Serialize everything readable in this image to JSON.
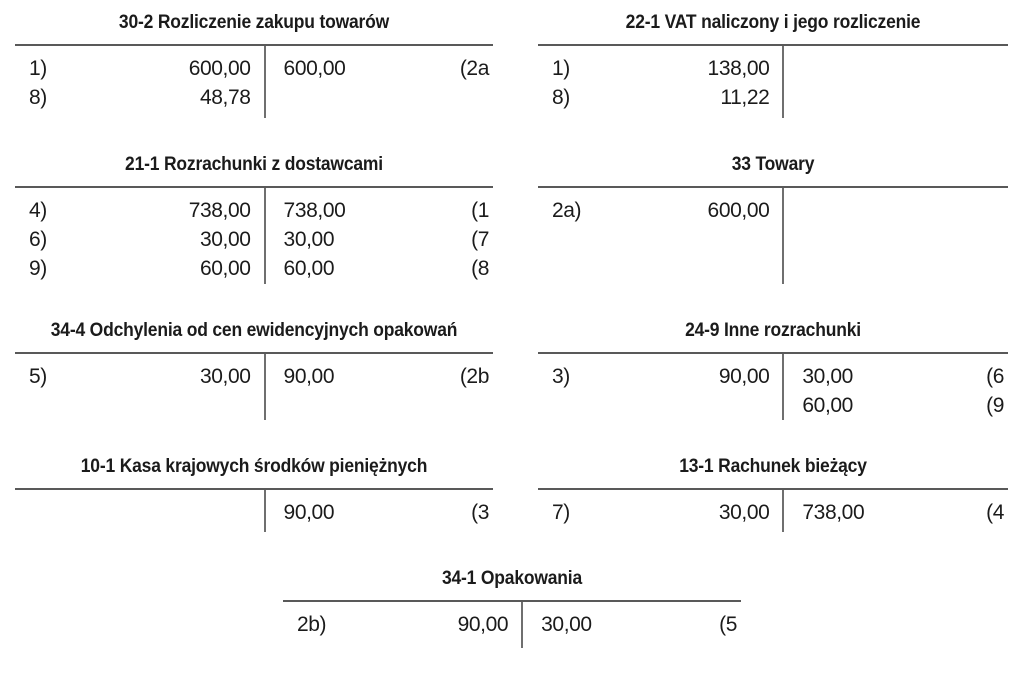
{
  "figure": {
    "kind": "t-accounts",
    "language": "pl"
  },
  "colors": {
    "ink": "#1b1b1b",
    "rule": "#595959",
    "rule-light": "#6f6f6f",
    "background": "#ffffff"
  },
  "accounts": [
    {
      "title": "30-2 Rozliczenie zakupu towarów",
      "debit": [
        {
          "ref": "1)",
          "amount": "600,00"
        },
        {
          "ref": "8)",
          "amount": "48,78"
        }
      ],
      "credit": [
        {
          "amount": "600,00",
          "ref": "(2a"
        }
      ]
    },
    {
      "title": "22-1 VAT naliczony i jego rozliczenie",
      "debit": [
        {
          "ref": "1)",
          "amount": "138,00"
        },
        {
          "ref": "8)",
          "amount": "11,22"
        }
      ],
      "credit": []
    },
    {
      "title": "21-1 Rozrachunki z dostawcami",
      "debit": [
        {
          "ref": "4)",
          "amount": "738,00"
        },
        {
          "ref": "6)",
          "amount": "30,00"
        },
        {
          "ref": "9)",
          "amount": "60,00"
        }
      ],
      "credit": [
        {
          "amount": "738,00",
          "ref": "(1"
        },
        {
          "amount": "30,00",
          "ref": "(7"
        },
        {
          "amount": "60,00",
          "ref": "(8"
        }
      ]
    },
    {
      "title": "33 Towary",
      "debit": [
        {
          "ref": "2a)",
          "amount": "600,00"
        }
      ],
      "credit": []
    },
    {
      "title": "34-4 Odchylenia od cen ewidencyjnych opakowań",
      "debit": [
        {
          "ref": "5)",
          "amount": "30,00"
        }
      ],
      "credit": [
        {
          "amount": "90,00",
          "ref": "(2b"
        }
      ]
    },
    {
      "title": "24-9 Inne rozrachunki",
      "debit": [
        {
          "ref": "3)",
          "amount": "90,00"
        }
      ],
      "credit": [
        {
          "amount": "30,00",
          "ref": "(6"
        },
        {
          "amount": "60,00",
          "ref": "(9"
        }
      ]
    },
    {
      "title": "10-1 Kasa krajowych środków pieniężnych",
      "debit": [],
      "credit": [
        {
          "amount": "90,00",
          "ref": "(3"
        }
      ]
    },
    {
      "title": "13-1 Rachunek bieżący",
      "debit": [
        {
          "ref": "7)",
          "amount": "30,00"
        }
      ],
      "credit": [
        {
          "amount": "738,00",
          "ref": "(4"
        }
      ]
    },
    {
      "title": "34-1 Opakowania",
      "debit": [
        {
          "ref": "2b)",
          "amount": "90,00"
        }
      ],
      "credit": [
        {
          "amount": "30,00",
          "ref": "(5"
        }
      ]
    }
  ]
}
